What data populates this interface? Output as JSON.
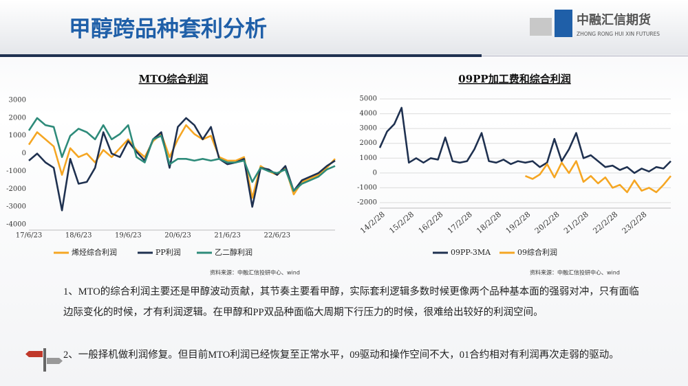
{
  "header": {
    "title": "甲醇跨品种套利分析",
    "logo_cn": "中融汇信期货",
    "logo_en": "ZHONG RONG HUI XIN FUTURES"
  },
  "chart_data": [
    {
      "type": "line",
      "title": "MTO综合利润",
      "categories": [
        "17/6/23",
        null,
        null,
        null,
        null,
        null,
        "18/6/23",
        null,
        null,
        null,
        null,
        null,
        "19/6/23",
        null,
        null,
        null,
        null,
        null,
        "20/6/23",
        null,
        null,
        null,
        null,
        null,
        "21/6/23",
        null,
        null,
        null,
        null,
        null,
        "22/6/23",
        null,
        null,
        null,
        null,
        null,
        null,
        null
      ],
      "series": [
        {
          "name": "烯烃综合利润",
          "color": "#f5a623",
          "values": [
            500,
            1200,
            800,
            400,
            -1200,
            300,
            -200,
            0,
            -500,
            200,
            -200,
            300,
            800,
            200,
            -200,
            700,
            1100,
            -200,
            800,
            1600,
            1100,
            800,
            1000,
            -200,
            -400,
            -400,
            -200,
            -2500,
            -700,
            -1000,
            -1200,
            -800,
            -2300,
            -1600,
            -1400,
            -1200,
            -800,
            -300
          ]
        },
        {
          "name": "PP利润",
          "color": "#1f3150",
          "values": [
            -400,
            0,
            -500,
            -800,
            -3200,
            -300,
            -1700,
            -1600,
            -800,
            1200,
            0,
            -200,
            700,
            100,
            -400,
            800,
            1200,
            -800,
            1500,
            2000,
            1600,
            800,
            1500,
            -300,
            -600,
            -500,
            -300,
            -3000,
            -800,
            -900,
            -1200,
            -700,
            -2100,
            -1500,
            -1300,
            -1100,
            -700,
            -400
          ]
        },
        {
          "name": "乙二醇利润",
          "color": "#2e8b7a",
          "values": [
            1300,
            2000,
            1600,
            1500,
            -200,
            1000,
            1400,
            1200,
            800,
            1600,
            800,
            1100,
            1600,
            -200,
            -500,
            800,
            1000,
            -600,
            -300,
            -300,
            -400,
            -300,
            -400,
            -300,
            -500,
            -500,
            -400,
            -1600,
            -800,
            -1000,
            -1100,
            -900,
            -2100,
            -1700,
            -1500,
            -1300,
            -900,
            -700
          ]
        }
      ],
      "ylim": [
        -4000,
        3000
      ],
      "yticks": [
        -4000,
        -3000,
        -2000,
        -1000,
        0,
        1000,
        2000,
        3000
      ],
      "grid": false,
      "source": "资料来源：中融汇信投研中心、wind"
    },
    {
      "type": "line",
      "title": "09PP加工费和综合利润",
      "categories": [
        "14/2/28",
        null,
        null,
        null,
        "15/2/28",
        null,
        null,
        null,
        "16/2/28",
        null,
        null,
        null,
        "17/2/28",
        null,
        null,
        null,
        "18/2/28",
        null,
        null,
        null,
        "19/2/28",
        null,
        null,
        null,
        "20/2/28",
        null,
        null,
        null,
        "21/2/28",
        null,
        null,
        null,
        "22/2/28",
        null,
        null,
        null,
        "23/2/28",
        null,
        null,
        null,
        null
      ],
      "series": [
        {
          "name": "09PP-3MA",
          "color": "#1f3150",
          "values": [
            1700,
            2800,
            3300,
            4400,
            700,
            1000,
            700,
            1000,
            900,
            2400,
            800,
            700,
            800,
            1600,
            2700,
            800,
            700,
            900,
            600,
            800,
            700,
            800,
            400,
            700,
            2300,
            800,
            1600,
            2700,
            1000,
            1200,
            800,
            400,
            500,
            200,
            400,
            0,
            300,
            100,
            400,
            300,
            800
          ]
        },
        {
          "name": "09综合利润",
          "color": "#f5a623",
          "values": [
            null,
            null,
            null,
            null,
            null,
            null,
            null,
            null,
            null,
            null,
            null,
            null,
            null,
            null,
            null,
            null,
            null,
            null,
            null,
            null,
            -200,
            -400,
            -100,
            600,
            -300,
            700,
            0,
            800,
            -600,
            -200,
            -700,
            -300,
            -1000,
            -800,
            -1300,
            -500,
            -1200,
            -1000,
            -1300,
            -800,
            -200
          ]
        }
      ],
      "ylim": [
        -2000,
        5000
      ],
      "yticks": [
        -2000,
        -1000,
        0,
        1000,
        2000,
        3000,
        4000,
        5000
      ],
      "grid": true,
      "source": "资料来源：中融汇信投研中心、wind"
    }
  ],
  "paragraphs": [
    "1、MTO的综合利润主要还是甲醇波动贡献，其节奏主要看甲醇，实际套利逻辑多数时候更像两个品种基本面的强弱对冲，只有面临边际变化的时候，才有利润逻辑。在甲醇和PP双品种面临大周期下行压力的时候，很难给出较好的利润空间。",
    "2、一般择机做利润修复。但目前MTO利润已经恢复至正常水平，09驱动和操作空间不大，01合约相对有利润再次走弱的驱动。"
  ]
}
